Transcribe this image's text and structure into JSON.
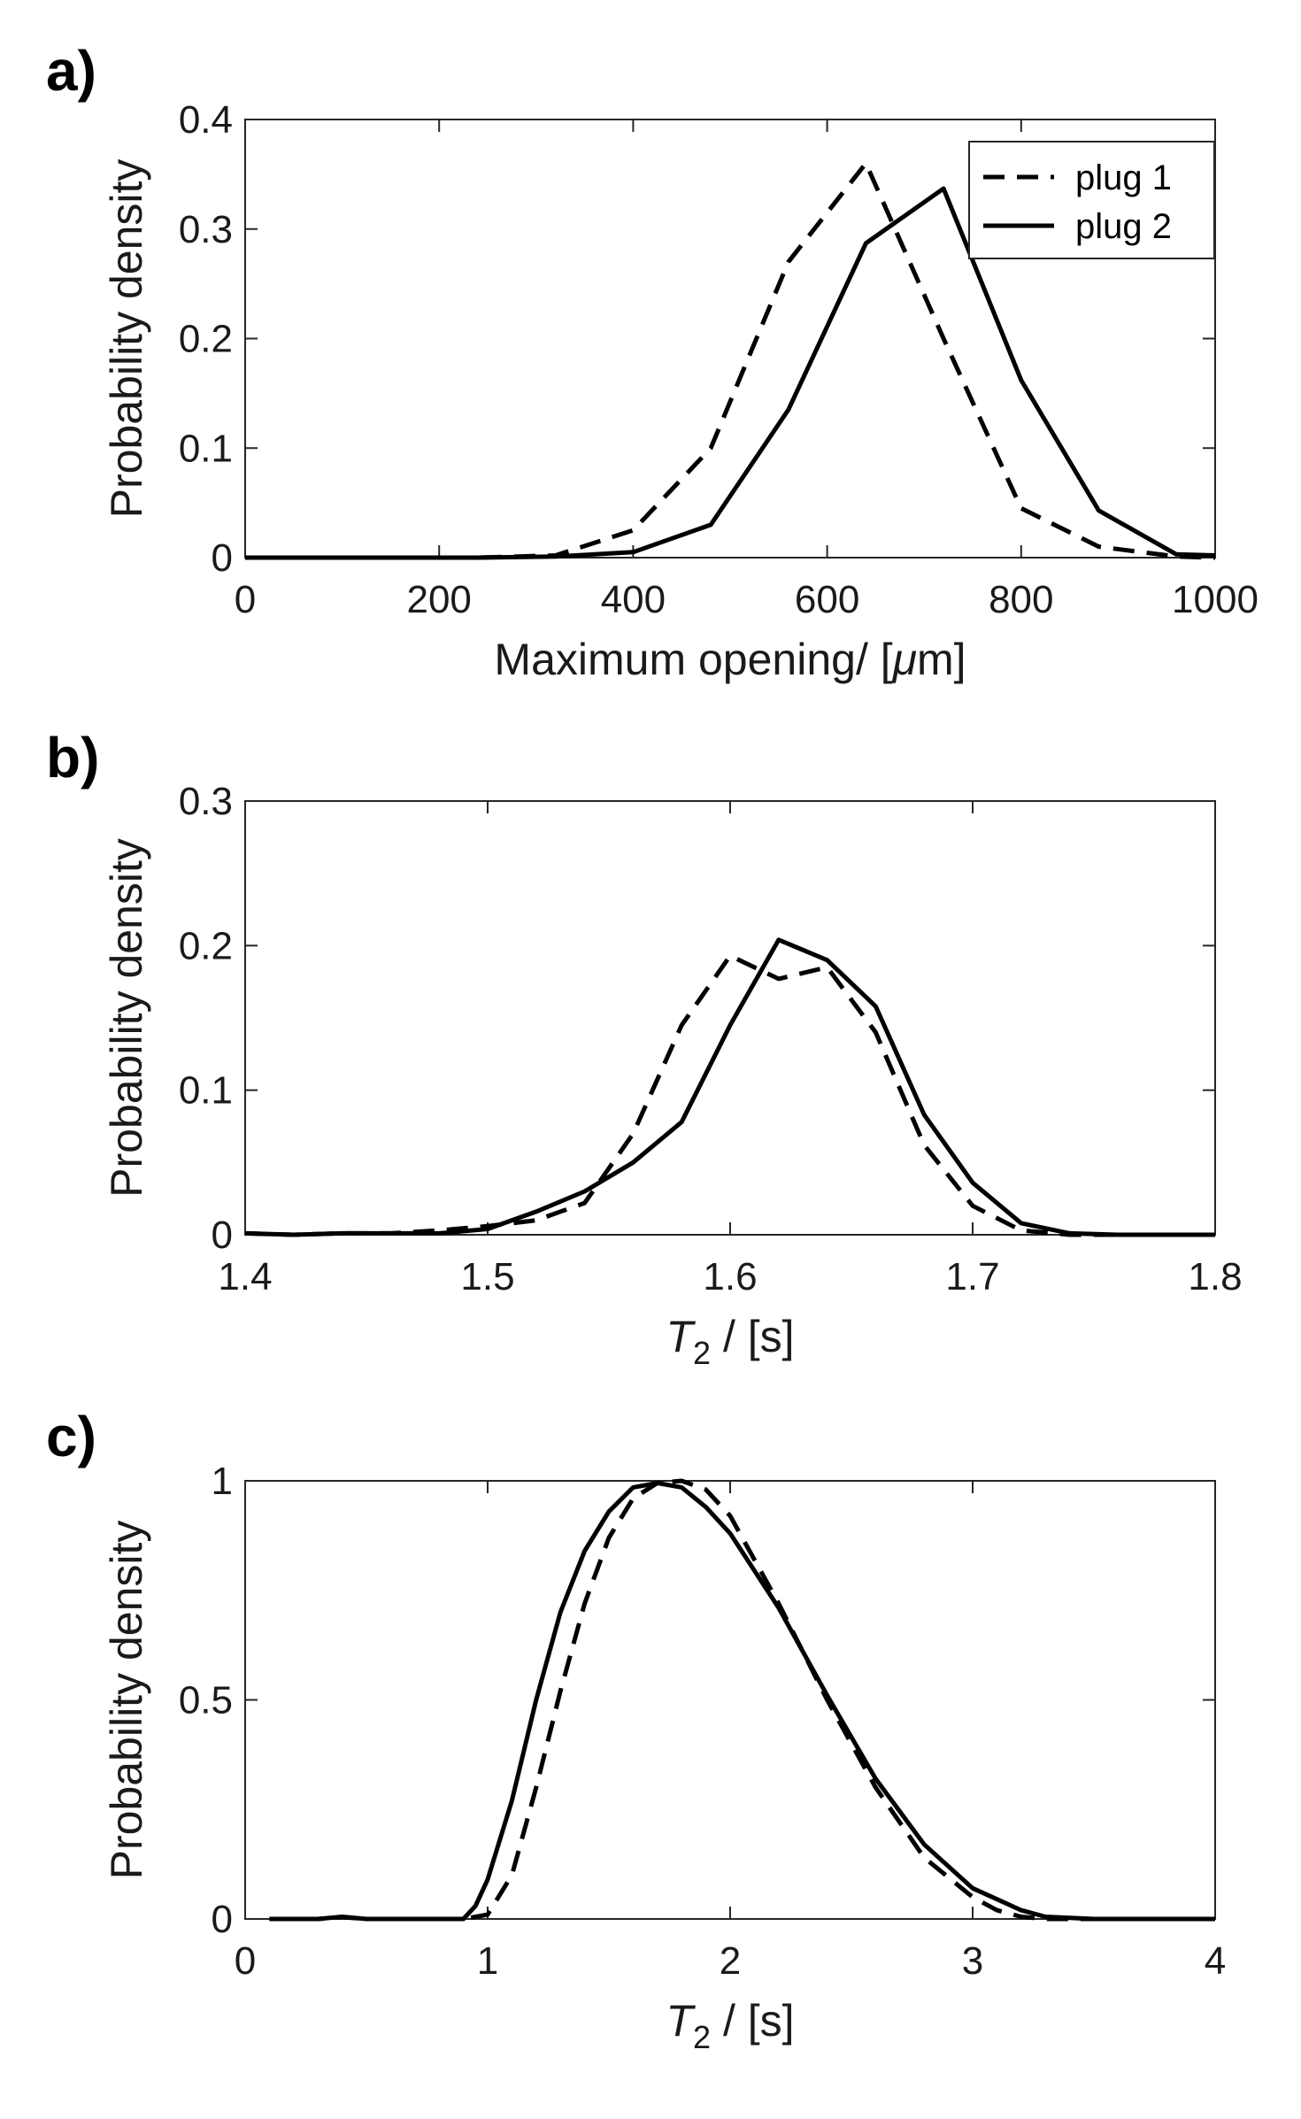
{
  "figure": {
    "background": "#ffffff",
    "line_color": "#000000"
  },
  "chart_data": [
    {
      "type": "line",
      "panel_label": "a)",
      "xlabel": "Maximum opening/ [μm]",
      "xlabel_parts": {
        "prefix": "Maximum opening/ [",
        "mu": "μ",
        "suffix": "m]"
      },
      "ylabel": "Probability density",
      "xlim": [
        0,
        1000
      ],
      "ylim": [
        0,
        0.4
      ],
      "xticks": [
        0,
        200,
        400,
        600,
        800,
        1000
      ],
      "xtick_labels": [
        "0",
        "200",
        "400",
        "600",
        "800",
        "1000"
      ],
      "yticks": [
        0,
        0.1,
        0.2,
        0.3,
        0.4
      ],
      "ytick_labels": [
        "0",
        "0.1",
        "0.2",
        "0.3",
        "0.4"
      ],
      "legend": [
        "plug 1",
        "plug 2"
      ],
      "legend_location": "top-right",
      "series": [
        {
          "name": "plug 1",
          "style": "dashed",
          "x": [
            0,
            80,
            160,
            240,
            320,
            400,
            480,
            560,
            640,
            720,
            800,
            880,
            960,
            1000
          ],
          "y": [
            0,
            0,
            0,
            0,
            0.002,
            0.025,
            0.1,
            0.27,
            0.36,
            0.2,
            0.045,
            0.01,
            0.001,
            0
          ]
        },
        {
          "name": "plug 2",
          "style": "solid",
          "x": [
            0,
            80,
            160,
            240,
            320,
            400,
            480,
            560,
            640,
            720,
            800,
            880,
            960,
            1000
          ],
          "y": [
            0,
            0,
            0,
            0,
            0.001,
            0.005,
            0.03,
            0.135,
            0.287,
            0.337,
            0.162,
            0.043,
            0.003,
            0.002
          ]
        }
      ]
    },
    {
      "type": "line",
      "panel_label": "b)",
      "xlabel": "T2 / [s]",
      "xlabel_parts": {
        "var": "T",
        "sub": "2",
        "suffix": " / [s]"
      },
      "ylabel": "Probability density",
      "xlim": [
        1.4,
        1.8
      ],
      "ylim": [
        0,
        0.3
      ],
      "xticks": [
        1.4,
        1.5,
        1.6,
        1.7,
        1.8
      ],
      "xtick_labels": [
        "1.4",
        "1.5",
        "1.6",
        "1.7",
        "1.8"
      ],
      "yticks": [
        0,
        0.1,
        0.2,
        0.3
      ],
      "ytick_labels": [
        "0",
        "0.1",
        "0.2",
        "0.3"
      ],
      "series": [
        {
          "name": "plug 1",
          "style": "dashed",
          "x": [
            1.4,
            1.42,
            1.44,
            1.46,
            1.48,
            1.5,
            1.52,
            1.54,
            1.56,
            1.58,
            1.6,
            1.62,
            1.64,
            1.66,
            1.68,
            1.7,
            1.72,
            1.74,
            1.76,
            1.8
          ],
          "y": [
            0.001,
            0,
            0.001,
            0.001,
            0.003,
            0.006,
            0.01,
            0.022,
            0.07,
            0.145,
            0.193,
            0.177,
            0.185,
            0.14,
            0.062,
            0.02,
            0.003,
            0,
            0,
            0
          ]
        },
        {
          "name": "plug 2",
          "style": "solid",
          "x": [
            1.4,
            1.42,
            1.44,
            1.46,
            1.48,
            1.5,
            1.52,
            1.54,
            1.56,
            1.58,
            1.6,
            1.62,
            1.64,
            1.66,
            1.68,
            1.7,
            1.72,
            1.74,
            1.76,
            1.8
          ],
          "y": [
            0.001,
            0,
            0.001,
            0.001,
            0.001,
            0.004,
            0.016,
            0.03,
            0.05,
            0.078,
            0.145,
            0.204,
            0.19,
            0.158,
            0.083,
            0.036,
            0.008,
            0.001,
            0,
            0
          ]
        }
      ]
    },
    {
      "type": "line",
      "panel_label": "c)",
      "xlabel": "T2 / [s]",
      "xlabel_parts": {
        "var": "T",
        "sub": "2",
        "suffix": " / [s]"
      },
      "ylabel": "Probability density",
      "xlim": [
        0,
        4
      ],
      "ylim": [
        0,
        1
      ],
      "xticks": [
        0,
        1,
        2,
        3,
        4
      ],
      "xtick_labels": [
        "0",
        "1",
        "2",
        "3",
        "4"
      ],
      "yticks": [
        0,
        0.5,
        1
      ],
      "ytick_labels": [
        "0",
        "0.5",
        "1"
      ],
      "series": [
        {
          "name": "plug 1",
          "style": "dashed",
          "x": [
            0.1,
            0.3,
            0.4,
            0.5,
            0.7,
            0.9,
            1.0,
            1.1,
            1.2,
            1.3,
            1.4,
            1.5,
            1.6,
            1.7,
            1.8,
            1.9,
            2.0,
            2.2,
            2.4,
            2.6,
            2.8,
            3.0,
            3.1,
            3.2,
            3.3,
            3.5,
            4.0
          ],
          "y": [
            0,
            0,
            0.004,
            0,
            0,
            0,
            0.01,
            0.1,
            0.3,
            0.52,
            0.72,
            0.87,
            0.96,
            0.995,
            1.0,
            0.98,
            0.92,
            0.72,
            0.5,
            0.3,
            0.14,
            0.05,
            0.02,
            0.005,
            0,
            0,
            0
          ]
        },
        {
          "name": "plug 2",
          "style": "solid",
          "x": [
            0.1,
            0.3,
            0.4,
            0.5,
            0.7,
            0.9,
            0.95,
            1.0,
            1.1,
            1.2,
            1.3,
            1.4,
            1.5,
            1.6,
            1.7,
            1.8,
            1.9,
            2.0,
            2.2,
            2.4,
            2.6,
            2.8,
            3.0,
            3.2,
            3.3,
            3.5,
            4.0
          ],
          "y": [
            0,
            0,
            0.005,
            0,
            0,
            0,
            0.03,
            0.09,
            0.27,
            0.5,
            0.7,
            0.84,
            0.93,
            0.985,
            0.995,
            0.985,
            0.94,
            0.88,
            0.71,
            0.51,
            0.32,
            0.17,
            0.07,
            0.02,
            0.005,
            0,
            0
          ]
        }
      ]
    }
  ]
}
